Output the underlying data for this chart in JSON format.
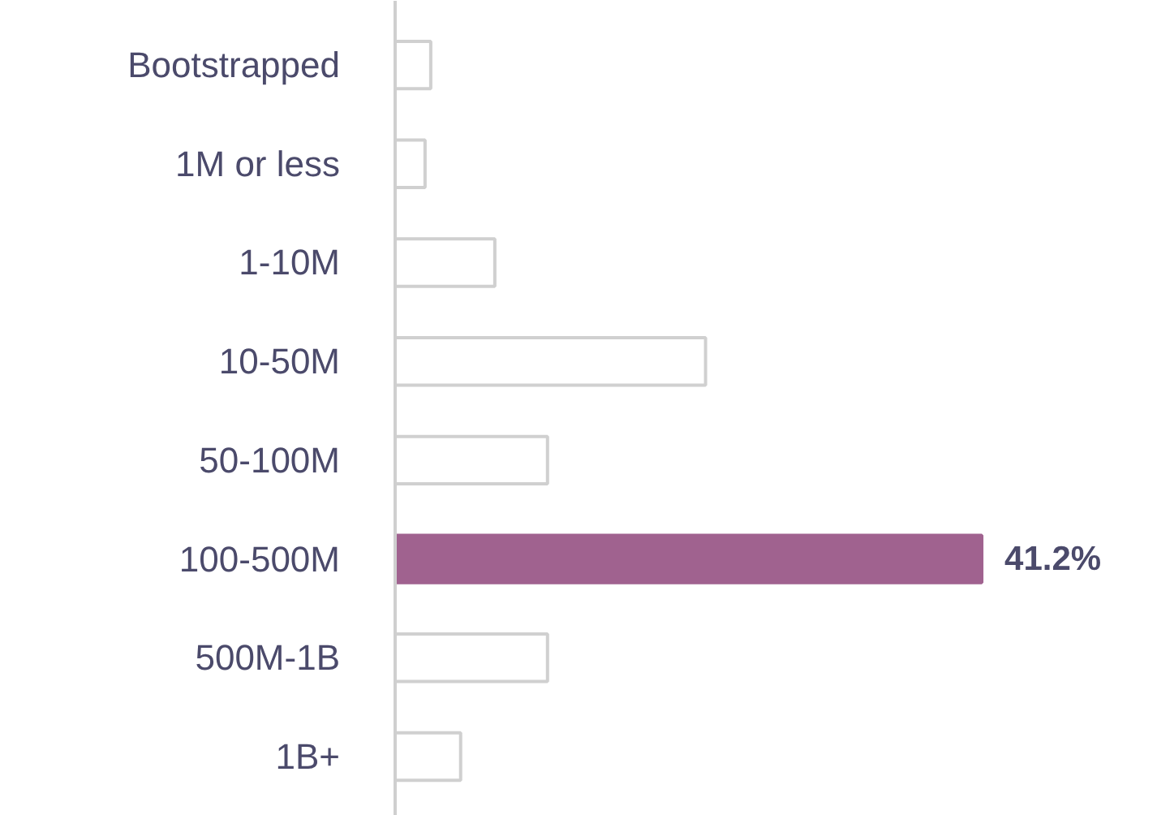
{
  "chart_data": {
    "type": "bar",
    "orientation": "horizontal",
    "categories": [
      "Bootstrapped",
      "1M or less",
      "1-10M",
      "10-50M",
      "50-100M",
      "100-500M",
      "500M-1B",
      "1B+"
    ],
    "values": [
      2.5,
      2.1,
      7.0,
      21.8,
      10.7,
      41.2,
      10.7,
      4.6
    ],
    "colors": [
      "#ffffff",
      "#ffffff",
      "#ffffff",
      "#ffffff",
      "#ffffff",
      "#a0628f",
      "#ffffff",
      "#ffffff"
    ],
    "value_labels": [
      null,
      null,
      null,
      null,
      null,
      "41.2%",
      null,
      null
    ],
    "tick_labels": "y",
    "grid": false
  }
}
